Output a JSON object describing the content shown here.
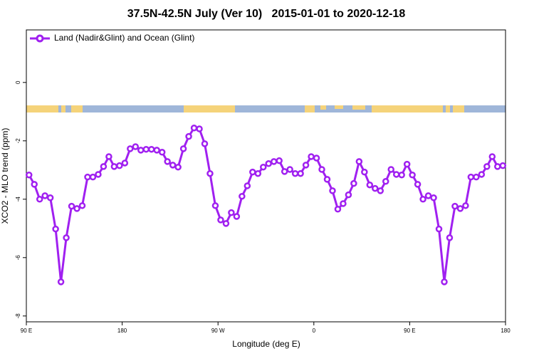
{
  "chart_data": {
    "type": "line",
    "title": "37.5N-42.5N July (Ver 10)   2015-01-01 to 2020-12-18",
    "xlabel": "Longitude (deg E)",
    "ylabel": "XCO2 - MLO trend (ppm)",
    "x": [
      92.5,
      97.5,
      102.5,
      107.5,
      112.5,
      117.5,
      122.5,
      127.5,
      132.5,
      137.5,
      142.5,
      147.5,
      152.5,
      157.5,
      162.5,
      167.5,
      172.5,
      177.5,
      182.5,
      187.5,
      192.5,
      197.5,
      202.5,
      207.5,
      212.5,
      217.5,
      222.5,
      227.5,
      232.5,
      237.5,
      242.5,
      247.5,
      252.5,
      257.5,
      262.5,
      267.5,
      272.5,
      277.5,
      282.5,
      287.5,
      292.5,
      297.5,
      302.5,
      307.5,
      312.5,
      317.5,
      322.5,
      327.5,
      332.5,
      337.5,
      342.5,
      347.5,
      352.5,
      357.5,
      362.5,
      367.5,
      372.5,
      377.5,
      382.5,
      387.5,
      392.5,
      397.5,
      402.5,
      407.5,
      412.5,
      417.5,
      422.5,
      427.5,
      432.5,
      437.5,
      442.5,
      447.5,
      452.5,
      457.5,
      462.5,
      467.5,
      472.5,
      477.5,
      482.5,
      487.5,
      492.5,
      497.5,
      502.5,
      507.5,
      512.5,
      517.5,
      522.5,
      527.5,
      532.5,
      537.5
    ],
    "series": [
      {
        "name": "Land (Nadir&Glint) and Ocean (Glint)",
        "color": "#a020f0",
        "values": [
          -3.17,
          -3.49,
          -4.0,
          -3.88,
          -3.95,
          -5.02,
          -6.83,
          -5.32,
          -4.24,
          -4.32,
          -4.22,
          -3.24,
          -3.24,
          -3.15,
          -2.88,
          -2.54,
          -2.88,
          -2.85,
          -2.76,
          -2.27,
          -2.2,
          -2.32,
          -2.29,
          -2.29,
          -2.32,
          -2.39,
          -2.71,
          -2.83,
          -2.9,
          -2.27,
          -1.85,
          -1.56,
          -1.59,
          -2.1,
          -3.12,
          -4.22,
          -4.71,
          -4.83,
          -4.46,
          -4.59,
          -3.9,
          -3.54,
          -3.07,
          -3.12,
          -2.9,
          -2.78,
          -2.71,
          -2.68,
          -3.05,
          -2.98,
          -3.12,
          -3.12,
          -2.83,
          -2.54,
          -2.59,
          -2.98,
          -3.32,
          -3.71,
          -4.34,
          -4.15,
          -3.85,
          -3.46,
          -2.71,
          -3.07,
          -3.51,
          -3.63,
          -3.71,
          -3.39,
          -2.98,
          -3.15,
          -3.17,
          -2.8,
          -3.17,
          -3.49,
          -4.0,
          -3.88,
          -3.95,
          -5.02,
          -6.83,
          -5.32,
          -4.24,
          -4.32,
          -4.22,
          -3.24,
          -3.24,
          -3.15,
          -2.88,
          -2.54,
          -2.88,
          -2.85
        ]
      }
    ],
    "xlim": [
      90,
      540
    ],
    "xticks": [
      {
        "value": 90,
        "label": "90 E"
      },
      180,
      {
        "value": 270,
        "label": "90 W"
      },
      {
        "value": 360,
        "label": "0"
      },
      {
        "value": 450,
        "label": "90 E"
      },
      {
        "value": 540,
        "label": "180"
      }
    ],
    "ylim": [
      -8.2,
      1.8
    ],
    "yticks": [
      0,
      -2,
      -4,
      -6,
      -8
    ],
    "legend": "upper left"
  }
}
